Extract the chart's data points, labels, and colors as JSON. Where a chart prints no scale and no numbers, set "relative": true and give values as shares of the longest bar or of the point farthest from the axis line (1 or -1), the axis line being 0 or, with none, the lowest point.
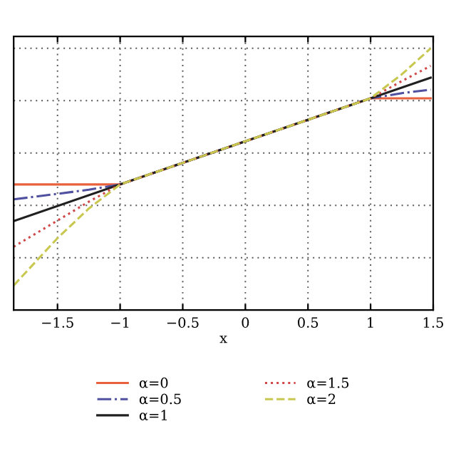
{
  "chart_data": {
    "type": "line",
    "xlabel": "x",
    "relative": true,
    "xlim": [
      -1.85,
      1.5
    ],
    "xticks": [
      {
        "value": -1.5,
        "label": "−1.5"
      },
      {
        "value": -1,
        "label": "−1"
      },
      {
        "value": -0.5,
        "label": "−0.5"
      },
      0,
      0.5,
      1,
      1.5
    ],
    "grid": true,
    "legend": "bottom",
    "tick_labels": "x",
    "series": [
      {
        "name": "α=0",
        "color": "#e8603c",
        "line_style": "solid",
        "x": [
          -1.85,
          -1,
          1,
          1.48
        ],
        "values": [
          0.48,
          0.48,
          0.809,
          0.809
        ]
      },
      {
        "name": "α=0.5",
        "color": "#5050a0",
        "line_style": "dashdot",
        "x": [
          -1.85,
          -1.5,
          -1.25,
          -1,
          1,
          1.25,
          1.48
        ],
        "values": [
          0.423,
          0.444,
          0.46,
          0.48,
          0.809,
          0.829,
          0.842
        ]
      },
      {
        "name": "α=1",
        "color": "#202020",
        "line_style": "solid",
        "x": [
          -1.85,
          0,
          1.48
        ],
        "values": [
          0.34,
          0.645,
          0.888
        ]
      },
      {
        "name": "α=1.5",
        "color": "#d04848",
        "line_style": "dotted",
        "x": [
          -1.85,
          -1.5,
          -1.25,
          -1,
          0,
          1,
          1.25,
          1.48
        ],
        "values": [
          0.242,
          0.342,
          0.414,
          0.48,
          0.645,
          0.809,
          0.875,
          0.933
        ]
      },
      {
        "name": "α=2",
        "color": "#c8c850",
        "line_style": "dashed",
        "x": [
          -1.85,
          -1.5,
          -1.25,
          -1,
          0,
          1,
          1.25,
          1.48
        ],
        "values": [
          0.094,
          0.275,
          0.388,
          0.48,
          0.645,
          0.809,
          0.901,
          1.0
        ]
      }
    ]
  }
}
